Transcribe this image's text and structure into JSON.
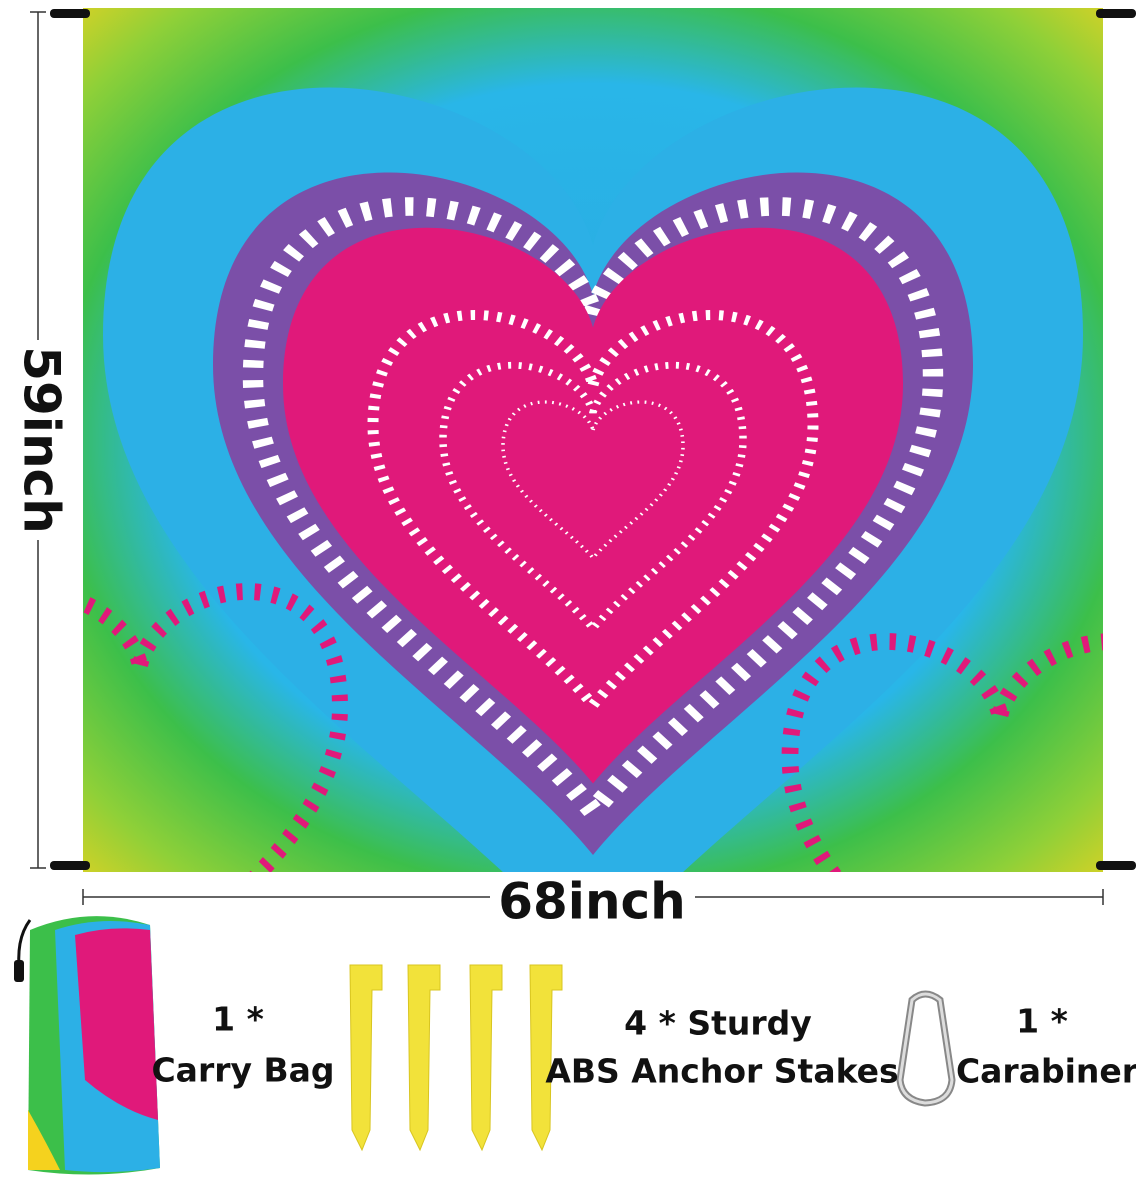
{
  "dimensions": {
    "height": "59inch",
    "width": "68inch"
  },
  "items": [
    {
      "count": "1 *",
      "label": "Carry Bag"
    },
    {
      "count": "4 * Sturdy",
      "label": "ABS Anchor Stakes"
    },
    {
      "count": "1 *",
      "label": "Carabiner"
    }
  ]
}
